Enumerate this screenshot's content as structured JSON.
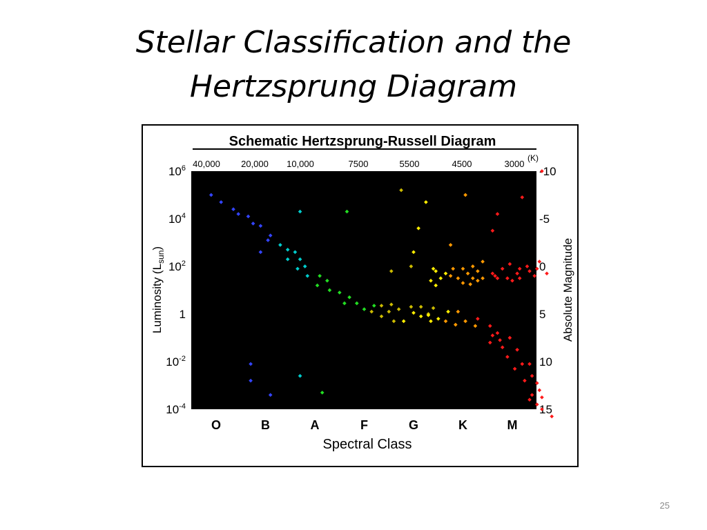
{
  "slide": {
    "title_line1": "Stellar Classification and the",
    "title_line2": "Hertzsprung Diagram",
    "number": "25"
  },
  "chart_data": {
    "type": "scatter",
    "title": "Schematic Hertzsprung-Russell Diagram",
    "xlabel": "Spectral Class",
    "ylabel_main": "Luminosity (L",
    "ylabel_sub": "sun",
    "ylabel_close": ")",
    "y2label": "Absolute Magnitude",
    "x_categories": [
      "O",
      "B",
      "A",
      "F",
      "G",
      "K",
      "M"
    ],
    "temperature_ticks": [
      "40,000",
      "20,000",
      "10,000",
      "7500",
      "5500",
      "4500",
      "3000"
    ],
    "temperature_unit": "(K)",
    "luminosity_ticks": [
      {
        "base": "10",
        "exp": "6",
        "log": 6
      },
      {
        "base": "10",
        "exp": "4",
        "log": 4
      },
      {
        "base": "10",
        "exp": "2",
        "log": 2
      },
      {
        "base": "1",
        "exp": "",
        "log": 0
      },
      {
        "base": "10",
        "exp": "-2",
        "log": -2
      },
      {
        "base": "10",
        "exp": "-4",
        "log": -4
      }
    ],
    "magnitude_ticks": [
      "-10",
      "-5",
      "0",
      "5",
      "10",
      "15"
    ],
    "log_luminosity_range": [
      -4,
      6
    ],
    "spectral_range": [
      0,
      6.6
    ],
    "background": "#000000",
    "point_groups": [
      {
        "color": "#3344ff",
        "points": [
          [
            -0.1,
            5.0
          ],
          [
            0.1,
            4.7
          ],
          [
            0.35,
            4.4
          ],
          [
            0.45,
            4.2
          ],
          [
            0.65,
            4.1
          ],
          [
            0.75,
            3.8
          ],
          [
            0.9,
            3.7
          ],
          [
            1.1,
            3.3
          ],
          [
            1.05,
            3.1
          ],
          [
            0.9,
            2.6
          ],
          [
            0.7,
            -2.8
          ],
          [
            0.7,
            -2.1
          ],
          [
            1.1,
            -3.4
          ]
        ]
      },
      {
        "color": "#00cccc",
        "points": [
          [
            1.3,
            2.9
          ],
          [
            1.45,
            2.7
          ],
          [
            1.6,
            2.6
          ],
          [
            1.45,
            2.3
          ],
          [
            1.7,
            2.3
          ],
          [
            1.8,
            2.0
          ],
          [
            1.65,
            1.9
          ],
          [
            1.85,
            1.6
          ],
          [
            1.7,
            -2.6
          ],
          [
            1.7,
            4.3
          ]
        ]
      },
      {
        "color": "#22dd22",
        "points": [
          [
            2.1,
            1.6
          ],
          [
            2.25,
            1.4
          ],
          [
            2.05,
            1.2
          ],
          [
            2.3,
            1.0
          ],
          [
            2.5,
            0.9
          ],
          [
            2.7,
            0.7
          ],
          [
            2.6,
            0.45
          ],
          [
            2.85,
            0.45
          ],
          [
            3.0,
            0.2
          ],
          [
            3.2,
            0.35
          ],
          [
            2.15,
            -3.3
          ],
          [
            2.65,
            4.3
          ]
        ]
      },
      {
        "color": "#ccbb00",
        "points": [
          [
            3.35,
            0.35
          ],
          [
            3.55,
            0.4
          ],
          [
            3.15,
            0.1
          ],
          [
            3.5,
            0.1
          ],
          [
            3.7,
            0.2
          ],
          [
            3.95,
            0.3
          ],
          [
            3.35,
            -0.1
          ],
          [
            3.6,
            -0.3
          ],
          [
            3.75,
            5.2
          ],
          [
            3.95,
            2.0
          ],
          [
            3.55,
            1.8
          ],
          [
            4.15,
            0.3
          ],
          [
            4.4,
            0.25
          ],
          [
            4.3,
            0.0
          ]
        ]
      },
      {
        "color": "#ffee00",
        "points": [
          [
            4.0,
            0.05
          ],
          [
            4.15,
            -0.1
          ],
          [
            4.35,
            -0.3
          ],
          [
            4.5,
            -0.2
          ],
          [
            4.7,
            0.1
          ],
          [
            3.8,
            -0.3
          ],
          [
            4.3,
            -0.05
          ],
          [
            4.1,
            3.6
          ],
          [
            4.25,
            4.7
          ],
          [
            4.4,
            1.9
          ],
          [
            4.0,
            2.6
          ],
          [
            4.45,
            1.8
          ],
          [
            4.55,
            1.5
          ],
          [
            4.45,
            1.2
          ],
          [
            4.35,
            1.4
          ],
          [
            4.65,
            1.7
          ]
        ]
      },
      {
        "color": "#ff9900",
        "points": [
          [
            4.65,
            -0.3
          ],
          [
            4.9,
            0.1
          ],
          [
            4.85,
            -0.45
          ],
          [
            5.05,
            -0.3
          ],
          [
            5.25,
            -0.5
          ],
          [
            4.75,
            2.9
          ],
          [
            4.8,
            1.9
          ],
          [
            4.75,
            1.6
          ],
          [
            4.9,
            1.5
          ],
          [
            5.0,
            1.9
          ],
          [
            5.2,
            2.0
          ],
          [
            5.1,
            1.7
          ],
          [
            5.3,
            1.8
          ],
          [
            5.2,
            1.5
          ],
          [
            5.4,
            1.5
          ],
          [
            5.0,
            1.3
          ],
          [
            5.15,
            1.25
          ],
          [
            5.3,
            1.4
          ],
          [
            5.4,
            2.2
          ],
          [
            5.05,
            5.0
          ]
        ]
      },
      {
        "color": "#ff1a1a",
        "points": [
          [
            5.3,
            -0.2
          ],
          [
            5.55,
            -0.5
          ],
          [
            5.7,
            -0.8
          ],
          [
            5.95,
            -1.0
          ],
          [
            5.55,
            -1.2
          ],
          [
            5.8,
            -1.4
          ],
          [
            6.1,
            -1.5
          ],
          [
            5.9,
            -1.8
          ],
          [
            6.2,
            -2.1
          ],
          [
            6.05,
            -2.3
          ],
          [
            6.35,
            -2.1
          ],
          [
            6.4,
            -2.6
          ],
          [
            6.25,
            -2.8
          ],
          [
            6.5,
            -2.9
          ],
          [
            6.55,
            -3.2
          ],
          [
            6.4,
            -3.4
          ],
          [
            6.6,
            -3.5
          ],
          [
            6.35,
            -3.6
          ],
          [
            6.5,
            -3.8
          ],
          [
            6.6,
            -4.0
          ],
          [
            6.8,
            -4.3
          ],
          [
            5.6,
            -0.9
          ],
          [
            5.75,
            -1.1
          ],
          [
            5.65,
            1.6
          ],
          [
            5.6,
            1.7
          ],
          [
            5.8,
            1.9
          ],
          [
            5.7,
            1.5
          ],
          [
            5.95,
            2.1
          ],
          [
            6.1,
            1.7
          ],
          [
            5.9,
            1.5
          ],
          [
            6.15,
            1.9
          ],
          [
            6.3,
            2.0
          ],
          [
            6.35,
            1.8
          ],
          [
            6.15,
            1.5
          ],
          [
            6.0,
            1.4
          ],
          [
            6.5,
            1.9
          ],
          [
            6.55,
            2.2
          ],
          [
            6.45,
            1.6
          ],
          [
            6.7,
            1.7
          ],
          [
            5.7,
            4.2
          ],
          [
            5.6,
            3.5
          ],
          [
            6.2,
            4.9
          ],
          [
            6.6,
            6.0
          ]
        ]
      }
    ]
  }
}
